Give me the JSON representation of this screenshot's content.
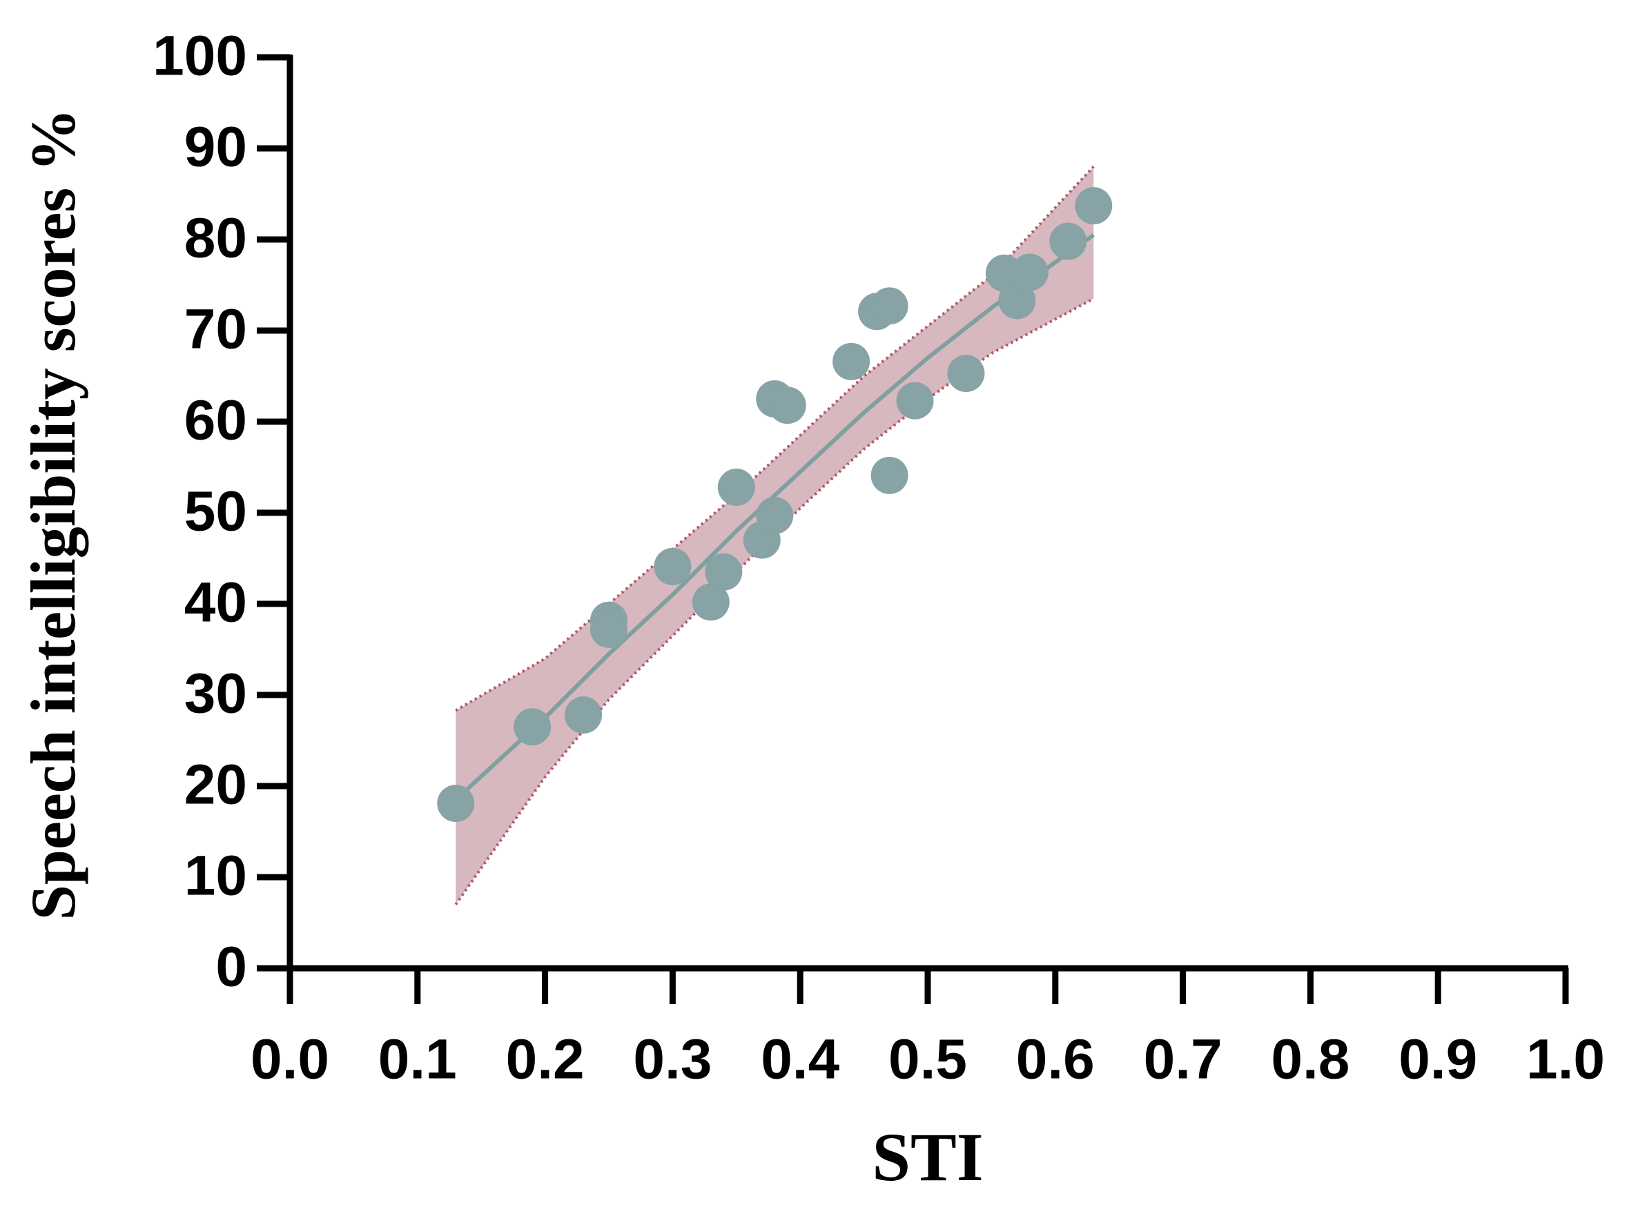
{
  "chart_data": {
    "type": "scatter",
    "x_label": "STI",
    "y_label": "Speech intelligibility scores %",
    "xlim": [
      0,
      1
    ],
    "ylim": [
      0,
      100
    ],
    "xticks": [
      {
        "value": 0,
        "label": "0.0"
      },
      0.1,
      0.2,
      0.3,
      0.4,
      0.5,
      0.6,
      0.7,
      0.8,
      0.9,
      {
        "value": 1,
        "label": "1.0"
      }
    ],
    "yticks": [
      0,
      10,
      20,
      30,
      40,
      50,
      60,
      70,
      80,
      90,
      100
    ],
    "points": {
      "color": "#87a3a6",
      "x": [
        0.13,
        0.19,
        0.23,
        0.25,
        0.25,
        0.3,
        0.33,
        0.34,
        0.35,
        0.37,
        0.38,
        0.38,
        0.39,
        0.44,
        0.46,
        0.47,
        0.47,
        0.49,
        0.53,
        0.56,
        0.57,
        0.58,
        0.61,
        0.63
      ],
      "y": [
        18.1,
        26.5,
        27.8,
        38.2,
        37.2,
        44.1,
        40.2,
        43.5,
        52.8,
        47.0,
        49.7,
        62.5,
        61.8,
        66.6,
        72.1,
        72.7,
        54.1,
        62.3,
        65.3,
        76.3,
        73.3,
        76.4,
        79.8,
        83.7
      ]
    },
    "fit": {
      "color": "#7f9fa0",
      "band_color": "#d6b8be",
      "band_edge_color": "#b0506a",
      "x": [
        0.13,
        0.2,
        0.25,
        0.3,
        0.35,
        0.4,
        0.45,
        0.5,
        0.55,
        0.63
      ],
      "values": [
        18.5,
        27.5,
        34.5,
        41,
        48,
        54.5,
        61,
        67,
        72.5,
        80.5
      ],
      "upper": [
        28.3,
        34,
        40,
        46,
        52,
        58.5,
        65,
        70.5,
        76,
        88
      ],
      "lower": [
        7,
        21,
        29.5,
        36.5,
        43.5,
        50.5,
        57,
        62.5,
        67.5,
        73.5
      ]
    }
  }
}
